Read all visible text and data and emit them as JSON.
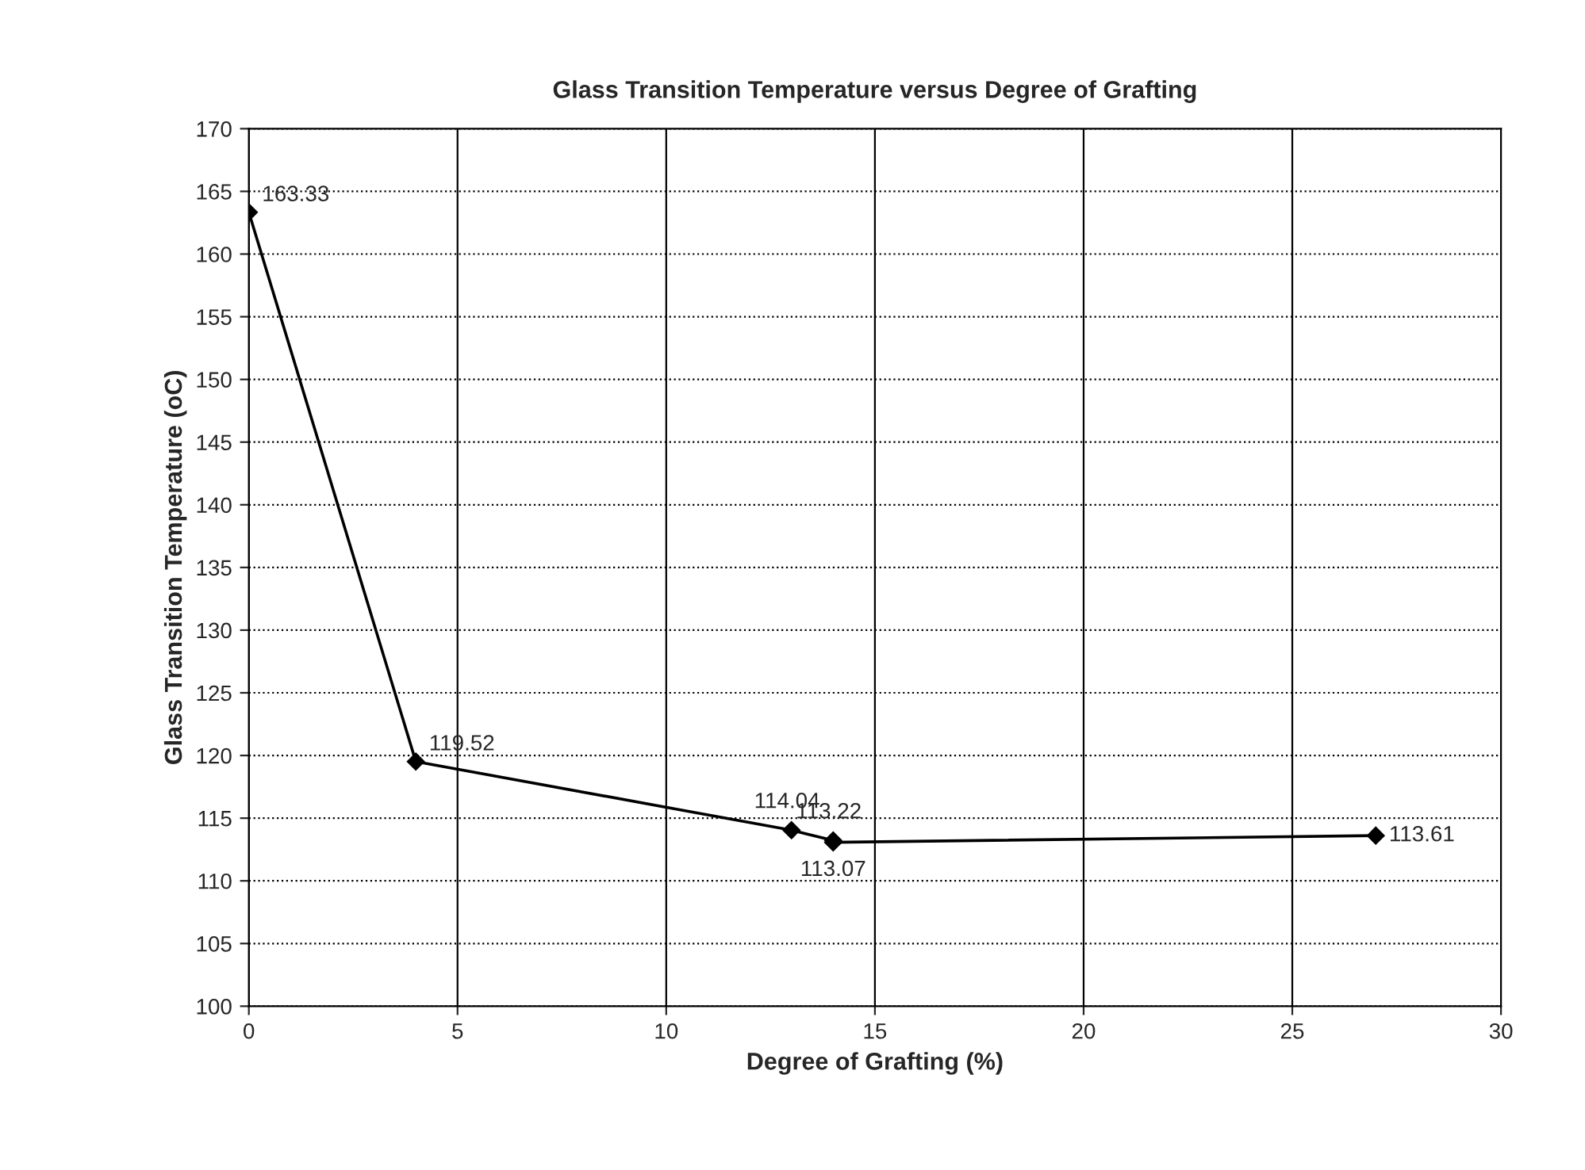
{
  "chart_data": {
    "type": "line",
    "title": "Glass Transition Temperature versus Degree of Grafting",
    "xlabel": "Degree of Grafting (%)",
    "ylabel": "Glass Transition Temperature (oC)",
    "x": [
      0,
      4,
      13,
      14,
      14,
      27
    ],
    "series": [
      {
        "color": "#000000",
        "values": [
          163.33,
          119.52,
          114.04,
          113.22,
          113.07,
          113.61
        ]
      }
    ],
    "xlim": [
      0,
      30
    ],
    "xticks": [
      0,
      5,
      10,
      15,
      20,
      25,
      30
    ],
    "ylim": [
      100,
      170
    ],
    "yticks": [
      100,
      105,
      110,
      115,
      120,
      125,
      130,
      135,
      140,
      145,
      150,
      155,
      160,
      165,
      170
    ],
    "grid": true,
    "marker": "diamond",
    "line_style": "solid",
    "data_labels": true
  }
}
